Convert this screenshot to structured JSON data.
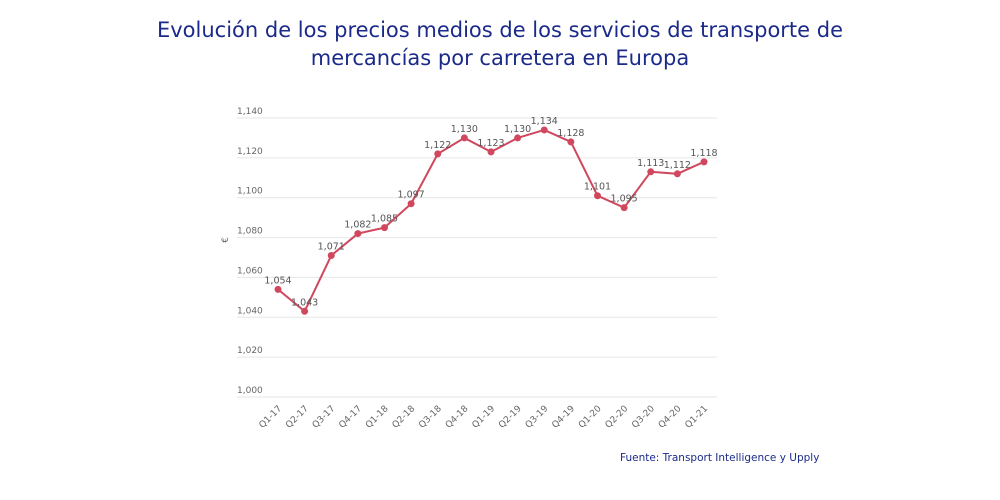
{
  "title_line1": "Evolución de los precios medios de los servicios de transporte de",
  "title_line2": "mercancías por carretera en Europa",
  "source": "Fuente: Transport Intelligence y Upply",
  "colors": {
    "title": "#1b2a8a",
    "series": "#d0485e",
    "grid": "#e6e6e6"
  },
  "chart_data": {
    "type": "line",
    "title": "Evolución de los precios medios de los servicios de transporte de mercancías por carretera en Europa",
    "xlabel": "",
    "ylabel": "€",
    "ylim": [
      1000,
      1140
    ],
    "yticks": [
      1000,
      1020,
      1040,
      1060,
      1080,
      1100,
      1120,
      1140
    ],
    "ytick_labels": [
      "1,000",
      "1,020",
      "1,040",
      "1,060",
      "1,080",
      "1,100",
      "1,120",
      "1,140"
    ],
    "grid": true,
    "categories": [
      "Q1-17",
      "Q2-17",
      "Q3-17",
      "Q4-17",
      "Q1-18",
      "Q2-18",
      "Q3-18",
      "Q4-18",
      "Q1-19",
      "Q2-19",
      "Q3-19",
      "Q4-19",
      "Q1-20",
      "Q2-20",
      "Q3-20",
      "Q4-20",
      "Q1-21"
    ],
    "values": [
      1054,
      1043,
      1071,
      1082,
      1085,
      1097,
      1122,
      1130,
      1123,
      1130,
      1134,
      1128,
      1101,
      1095,
      1113,
      1112,
      1118
    ],
    "data_labels": [
      "1,054",
      "1,043",
      "1,071",
      "1,082",
      "1,085",
      "1,097",
      "1,122",
      "1,130",
      "1,123",
      "1,130",
      "1,134",
      "1,128",
      "1,101",
      "1,095",
      "1,113",
      "1,112",
      "1,118"
    ]
  }
}
